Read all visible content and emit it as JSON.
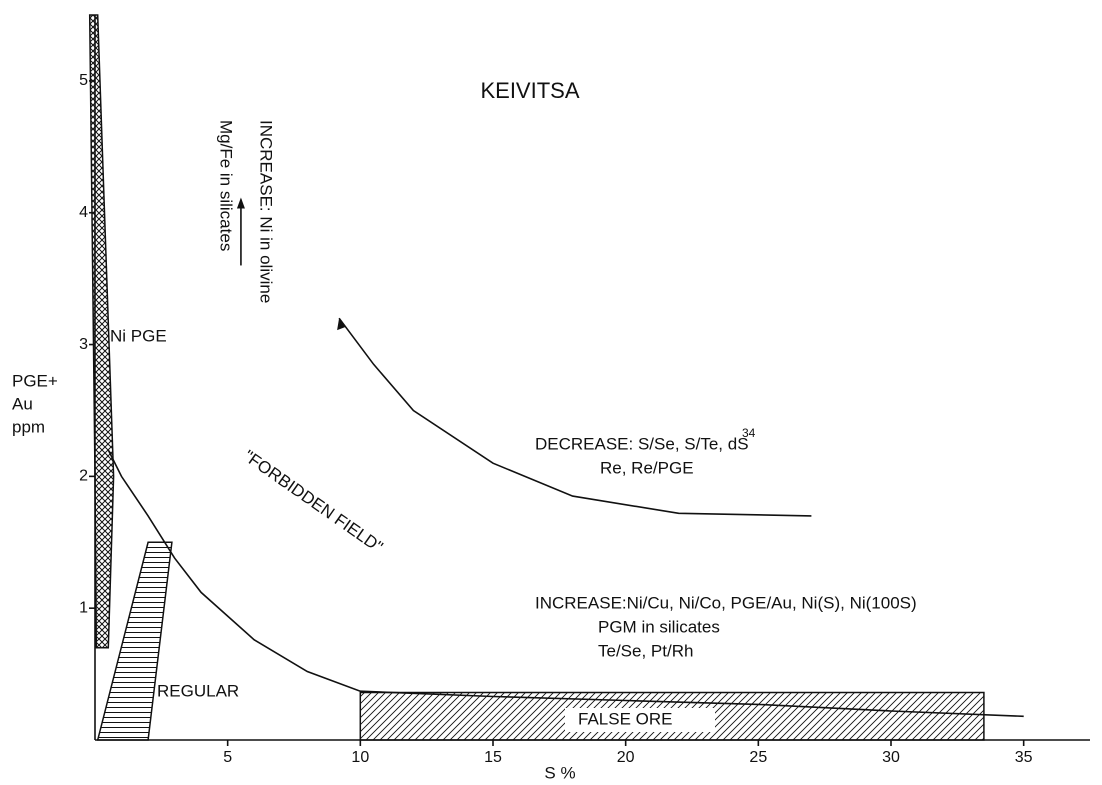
{
  "chart_data": {
    "type": "schematic",
    "title": "KEIVITSA",
    "x_label": "S %",
    "y_label": [
      "PGE+",
      "Au",
      "ppm"
    ],
    "xlim": [
      0,
      37.5
    ],
    "ylim": [
      0,
      5.5
    ],
    "xticks": [
      5,
      10,
      15,
      20,
      25,
      30,
      35
    ],
    "yticks": [
      1,
      2,
      3,
      4,
      5
    ],
    "regions": [
      {
        "name": "Ni PGE",
        "hatch": "cross",
        "x": [
          -0.2,
          0.1,
          0.7,
          0.5,
          0.05,
          0
        ],
        "y": [
          5.5,
          5.5,
          2,
          0.7,
          0.7,
          2
        ]
      },
      {
        "name": "REGULAR",
        "hatch": "horizontal",
        "x": [
          0.1,
          2,
          2.9,
          2
        ],
        "y": [
          0,
          0,
          1.5,
          1.5
        ]
      },
      {
        "name": "FALSE ORE",
        "hatch": "diagonal",
        "x": [
          10,
          33.5,
          33.5,
          10
        ],
        "y": [
          0,
          0,
          0.36,
          0.36
        ]
      }
    ],
    "curve": {
      "x": [
        0.5,
        1,
        2,
        3,
        4,
        6,
        8,
        10,
        15,
        20,
        25,
        30,
        35
      ],
      "y": [
        2.2,
        2.0,
        1.7,
        1.38,
        1.12,
        0.76,
        0.52,
        0.37,
        0.33,
        0.3,
        0.27,
        0.22,
        0.18
      ]
    },
    "trend_arrow": {
      "x": [
        27,
        22,
        18,
        15,
        12,
        10.5,
        9.2
      ],
      "y": [
        1.7,
        1.72,
        1.85,
        2.1,
        2.5,
        2.85,
        3.2
      ]
    },
    "vertical_arrow": {
      "x": [
        5.5,
        5.5
      ],
      "y": [
        3.6,
        4.1
      ]
    },
    "annotations": [
      "INCREASE: Ni in olivine",
      "Mg/Fe in silicates",
      "\"FORBIDDEN FIELD\"",
      "DECREASE: S/Se, S/Te, dS",
      "34",
      "Re, Re/PGE",
      "INCREASE:Ni/Cu, Ni/Co, PGE/Au, Ni(S), Ni(100S)",
      "PGM in silicates",
      "Te/Se, Pt/Rh"
    ]
  }
}
